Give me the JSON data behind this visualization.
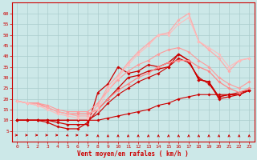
{
  "title": "",
  "xlabel": "Vent moyen/en rafales ( km/h )",
  "ylabel": "",
  "xlim": [
    -0.5,
    23.5
  ],
  "ylim": [
    0,
    65
  ],
  "yticks": [
    5,
    10,
    15,
    20,
    25,
    30,
    35,
    40,
    45,
    50,
    55,
    60
  ],
  "xticks": [
    0,
    1,
    2,
    3,
    4,
    5,
    6,
    7,
    8,
    9,
    10,
    11,
    12,
    13,
    14,
    15,
    16,
    17,
    18,
    19,
    20,
    21,
    22,
    23
  ],
  "bg_color": "#cce8e8",
  "grid_color": "#aacccc",
  "lines": [
    {
      "x": [
        0,
        1,
        2,
        3,
        4,
        5,
        6,
        7,
        8,
        9,
        10,
        11,
        12,
        13,
        14,
        15,
        16,
        17,
        18,
        19,
        20,
        21,
        22,
        23
      ],
      "y": [
        10,
        10,
        10,
        10,
        10,
        10,
        10,
        10,
        10,
        11,
        12,
        13,
        14,
        15,
        17,
        18,
        20,
        21,
        22,
        22,
        22,
        22,
        23,
        24
      ],
      "color": "#cc0000",
      "lw": 0.8,
      "marker": "D",
      "ms": 1.8,
      "ls": "-",
      "alpha": 1.0
    },
    {
      "x": [
        0,
        1,
        2,
        3,
        4,
        5,
        6,
        7,
        8,
        9,
        10,
        11,
        12,
        13,
        14,
        15,
        16,
        17,
        18,
        19,
        20,
        21,
        22,
        23
      ],
      "y": [
        10,
        10,
        10,
        9,
        7,
        6,
        6,
        9,
        15,
        20,
        25,
        30,
        31,
        33,
        34,
        35,
        41,
        38,
        29,
        28,
        20,
        21,
        22,
        24
      ],
      "color": "#cc0000",
      "lw": 0.9,
      "marker": "D",
      "ms": 1.8,
      "ls": "-",
      "alpha": 1.0
    },
    {
      "x": [
        0,
        1,
        2,
        3,
        4,
        5,
        6,
        7,
        8,
        9,
        10,
        11,
        12,
        13,
        14,
        15,
        16,
        17,
        18,
        19,
        20,
        21,
        22,
        23
      ],
      "y": [
        10,
        10,
        10,
        10,
        9,
        8,
        8,
        8,
        23,
        27,
        35,
        32,
        33,
        36,
        35,
        37,
        41,
        38,
        29,
        28,
        21,
        22,
        22,
        24
      ],
      "color": "#cc0000",
      "lw": 0.9,
      "marker": "D",
      "ms": 1.8,
      "ls": "-",
      "alpha": 1.0
    },
    {
      "x": [
        0,
        1,
        2,
        3,
        4,
        5,
        6,
        7,
        8,
        9,
        10,
        11,
        12,
        13,
        14,
        15,
        16,
        17,
        18,
        19,
        20,
        21,
        22,
        23
      ],
      "y": [
        10,
        10,
        10,
        10,
        10,
        10,
        10,
        10,
        13,
        18,
        22,
        25,
        28,
        30,
        32,
        35,
        39,
        37,
        30,
        27,
        21,
        22,
        22,
        24
      ],
      "color": "#cc0000",
      "lw": 0.8,
      "marker": "D",
      "ms": 1.8,
      "ls": "-",
      "alpha": 1.0
    },
    {
      "x": [
        0,
        1,
        2,
        3,
        4,
        5,
        6,
        7,
        8,
        9,
        10,
        11,
        12,
        13,
        14,
        15,
        16,
        17,
        18,
        19,
        20,
        21,
        22,
        23
      ],
      "y": [
        19,
        18,
        18,
        16,
        14,
        13,
        13,
        13,
        15,
        20,
        24,
        27,
        30,
        32,
        35,
        37,
        38,
        38,
        35,
        33,
        28,
        25,
        23,
        25
      ],
      "color": "#ff8888",
      "lw": 0.9,
      "marker": "D",
      "ms": 1.8,
      "ls": "-",
      "alpha": 1.0
    },
    {
      "x": [
        0,
        1,
        2,
        3,
        4,
        5,
        6,
        7,
        8,
        9,
        10,
        11,
        12,
        13,
        14,
        15,
        16,
        17,
        18,
        19,
        20,
        21,
        22,
        23
      ],
      "y": [
        19,
        18,
        18,
        17,
        15,
        14,
        14,
        14,
        18,
        24,
        29,
        33,
        36,
        38,
        41,
        43,
        44,
        42,
        38,
        35,
        30,
        27,
        25,
        28
      ],
      "color": "#ff9999",
      "lw": 0.8,
      "marker": "D",
      "ms": 1.8,
      "ls": "-",
      "alpha": 1.0
    },
    {
      "x": [
        0,
        1,
        2,
        3,
        4,
        5,
        6,
        7,
        8,
        9,
        10,
        11,
        12,
        13,
        14,
        15,
        16,
        17,
        18,
        19,
        20,
        21,
        22,
        23
      ],
      "y": [
        19,
        18,
        17,
        16,
        14,
        13,
        12,
        12,
        17,
        26,
        31,
        37,
        42,
        46,
        50,
        51,
        57,
        60,
        47,
        43,
        39,
        33,
        38,
        39
      ],
      "color": "#ffaaaa",
      "lw": 0.9,
      "marker": "D",
      "ms": 1.8,
      "ls": "-",
      "alpha": 1.0
    },
    {
      "x": [
        0,
        1,
        2,
        3,
        4,
        5,
        6,
        7,
        8,
        9,
        10,
        11,
        12,
        13,
        14,
        15,
        16,
        17,
        18,
        19,
        20,
        21,
        22,
        23
      ],
      "y": [
        19,
        18,
        17,
        15,
        13,
        12,
        11,
        11,
        15,
        24,
        30,
        36,
        41,
        45,
        50,
        50,
        55,
        58,
        47,
        44,
        41,
        35,
        38,
        39
      ],
      "color": "#ffbbbb",
      "lw": 0.8,
      "marker": "D",
      "ms": 1.8,
      "ls": "-",
      "alpha": 1.0
    }
  ],
  "arrow_color": "#cc0000",
  "arrow_xs_right": [
    0,
    1,
    2,
    3,
    4,
    6,
    7
  ],
  "arrow_xs_bend_down": [
    5
  ],
  "arrow_xs_up": [
    8,
    9,
    10,
    11,
    12,
    13,
    14,
    15,
    16,
    17,
    18,
    19,
    20,
    21,
    22,
    23
  ]
}
